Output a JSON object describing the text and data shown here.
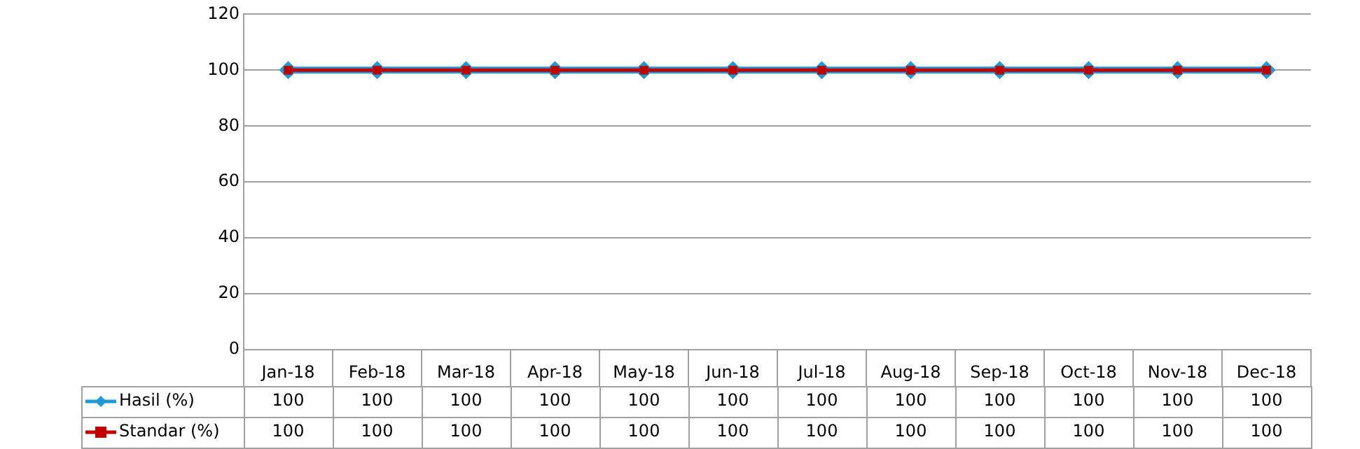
{
  "chart_data": {
    "type": "line",
    "categories": [
      "Jan-18",
      "Feb-18",
      "Mar-18",
      "Apr-18",
      "May-18",
      "Jun-18",
      "Jul-18",
      "Aug-18",
      "Sep-18",
      "Oct-18",
      "Nov-18",
      "Dec-18"
    ],
    "series": [
      {
        "name": "Hasil (%)",
        "color": "#1f9ad6",
        "marker": "diamond",
        "values": [
          100,
          100,
          100,
          100,
          100,
          100,
          100,
          100,
          100,
          100,
          100,
          100
        ]
      },
      {
        "name": "Standar (%)",
        "color": "#c00000",
        "marker": "square",
        "values": [
          100,
          100,
          100,
          100,
          100,
          100,
          100,
          100,
          100,
          100,
          100,
          100
        ]
      }
    ],
    "ylim": [
      0,
      120
    ],
    "yticks": [
      0,
      20,
      40,
      60,
      80,
      100,
      120
    ],
    "grid": "y",
    "legend": "bottom left",
    "data_labels": true
  }
}
